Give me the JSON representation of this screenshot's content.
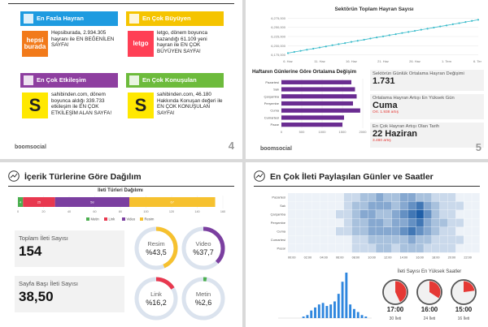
{
  "slide4": {
    "cards": [
      {
        "title": "En Fazla Hayran",
        "logo": "hepsi burada",
        "text": "Hepsiburada, 2.934.305 hayranı ile EN BEĞENİLEN SAYFA!",
        "color": "#1e9be0",
        "logo_color": "#f27a1a"
      },
      {
        "title": "En Çok Büyüyen",
        "logo": "letgo",
        "text": "letgo, dönem boyunca kazandığı 61.109 yeni hayran ile EN ÇOK BÜYÜYEN SAYFA!",
        "color": "#f5c400",
        "logo_color": "#ff3f55"
      },
      {
        "title": "En Çok Etkileşim",
        "logo": "S",
        "text": "sahibinden.com, dönem boyunca aldığı 339.733 etkileşim ile EN ÇOK ETKİLEŞİM ALAN SAYFA!",
        "color": "#8e3fa0",
        "logo_color": "#ffe800"
      },
      {
        "title": "En Çok Konuşulan",
        "logo": "S",
        "text": "sahibinden.com, 46.180 Hakkında Konuşan değeri ile EN ÇOK KONUŞULAN SAYFA!",
        "color": "#6dbb3c",
        "logo_color": "#ffe800"
      }
    ],
    "footer": "boomsocial",
    "page": "4"
  },
  "slide5": {
    "line_chart": {
      "type": "line",
      "title": "Sektörün Toplam Hayran Sayısı",
      "categories": [
        "6. Haz",
        null,
        null,
        null,
        null,
        "11. Haz",
        null,
        null,
        null,
        null,
        "16. Haz",
        null,
        null,
        null,
        null,
        "21. Haz",
        null,
        null,
        null,
        null,
        "26. Haz",
        null,
        null,
        null,
        null,
        "1. Tem",
        null,
        null,
        null,
        null,
        "6. Tem"
      ],
      "values": [
        6180000,
        6183200,
        6186100,
        6189300,
        6192000,
        6195200,
        6198100,
        6201300,
        6204400,
        6207200,
        6210500,
        6213400,
        6216300,
        6219600,
        6222500,
        6225400,
        6228600,
        6231300,
        6234500,
        6237400,
        6240300,
        6243500,
        6246200,
        6249300,
        6252400,
        6255100,
        6258300,
        6261200,
        6264400,
        6267300,
        6270500
      ],
      "color": "#3bbccb",
      "ylim": [
        6170000,
        6280000
      ],
      "yticks": [
        {
          "value": 6175000,
          "label": "6,175,000"
        },
        {
          "value": 6200000,
          "label": "6,200,000"
        },
        {
          "value": 6225000,
          "label": "6,225,000"
        },
        {
          "value": 6250000,
          "label": "6,250,000"
        },
        {
          "value": 6275000,
          "label": "6,275,000"
        }
      ]
    },
    "bar_chart": {
      "type": "bar",
      "title": "Haftanın Günlerine Göre Ortalama Değişim",
      "categories": [
        "Pazartesi",
        "Salı",
        "Çarşamba",
        "Perşembe",
        "Cuma",
        "Cumartesi",
        "Pazar"
      ],
      "values": [
        1720,
        1810,
        1850,
        1760,
        1938,
        1540,
        1500
      ],
      "color": "#6a2c91",
      "xlim": [
        0,
        2000
      ],
      "xticks": [
        0,
        500,
        1000,
        1500,
        2000
      ]
    },
    "stats": [
      {
        "label": "Sektörün Günlük Ortalama Hayran Değişimi",
        "value": "1.731"
      },
      {
        "label": "Ortalama Hayran Artışı En Yüksek Gün",
        "value": "Cuma",
        "note": "Ort. 1.938 artış"
      },
      {
        "label": "En Çok Hayran Artışı Olan Tarih",
        "value": "22 Haziran",
        "note": "3.480 artış"
      }
    ],
    "footer": "boomsocial",
    "page": "5"
  },
  "slide6": {
    "title": "İçerik Türlerine Göre Dağılım",
    "stacked": {
      "type": "stacked_bar",
      "title": "İleti Türleri Dağılımı",
      "series": [
        {
          "name": "Metin",
          "color": "#4caf50",
          "values": [
            4
          ]
        },
        {
          "name": "Link",
          "color": "#e8384f",
          "values": [
            25
          ]
        },
        {
          "name": "Video",
          "color": "#7b3fa0",
          "values": [
            58
          ]
        },
        {
          "name": "Resim",
          "color": "#f6c12f",
          "values": [
            67
          ]
        }
      ],
      "xlim": [
        0,
        160
      ],
      "xticks": [
        0,
        20,
        40,
        60,
        80,
        100,
        120,
        140,
        160
      ]
    },
    "cards": [
      {
        "label": "Toplam İleti Sayısı",
        "value": "154"
      },
      {
        "label": "Sayfa Başı İleti Sayısı",
        "value": "38,50"
      }
    ],
    "donuts": {
      "type": "donut",
      "categories": [
        "Resim",
        "Video",
        "Link",
        "Metin"
      ],
      "values": [
        43.5,
        37.7,
        16.2,
        2.6
      ],
      "value_labels": [
        "%43,5",
        "%37,7",
        "%16,2",
        "%2,6"
      ],
      "colors": [
        "#f6c12f",
        "#7b3fa0",
        "#e8384f",
        "#4caf50"
      ]
    }
  },
  "slide7": {
    "title": "En Çok İleti Paylaşılan Günler ve Saatler",
    "heatmap": {
      "type": "heatmap",
      "rows": [
        "Pazartesi",
        "Salı",
        "Çarşamba",
        "Perşembe",
        "Cuma",
        "Cumartesi",
        "Pazar"
      ],
      "columns": [
        "00:00",
        null,
        "02:00",
        null,
        "04:00",
        null,
        "06:00",
        null,
        "08:00",
        null,
        "10:00",
        null,
        "12:00",
        null,
        "14:00",
        null,
        "16:00",
        null,
        "18:00",
        null,
        "20:00",
        null,
        "22:00",
        null
      ],
      "values": [
        [
          0,
          0,
          0,
          0,
          0,
          0,
          0,
          1,
          1,
          2,
          2,
          3,
          2,
          2,
          3,
          3,
          2,
          2,
          1,
          1,
          1,
          0,
          0,
          0
        ],
        [
          0,
          0,
          0,
          0,
          0,
          0,
          0,
          1,
          2,
          2,
          3,
          3,
          3,
          2,
          3,
          4,
          5,
          3,
          2,
          1,
          1,
          1,
          0,
          0
        ],
        [
          0,
          0,
          0,
          0,
          0,
          0,
          1,
          1,
          2,
          3,
          3,
          2,
          2,
          3,
          4,
          5,
          6,
          4,
          2,
          1,
          1,
          0,
          0,
          0
        ],
        [
          0,
          0,
          0,
          0,
          0,
          0,
          0,
          1,
          2,
          2,
          3,
          3,
          2,
          3,
          3,
          4,
          5,
          3,
          2,
          2,
          1,
          1,
          0,
          0
        ],
        [
          0,
          0,
          0,
          0,
          0,
          0,
          1,
          1,
          2,
          2,
          3,
          3,
          3,
          3,
          4,
          5,
          4,
          3,
          2,
          1,
          1,
          0,
          0,
          0
        ],
        [
          0,
          0,
          0,
          0,
          0,
          0,
          0,
          0,
          1,
          1,
          2,
          2,
          2,
          2,
          2,
          3,
          2,
          2,
          1,
          1,
          1,
          1,
          0,
          0
        ],
        [
          0,
          0,
          0,
          0,
          0,
          0,
          0,
          0,
          1,
          1,
          1,
          2,
          2,
          1,
          2,
          2,
          2,
          1,
          1,
          1,
          1,
          0,
          0,
          0
        ]
      ],
      "color": "#1f5fa8"
    },
    "hourly": {
      "type": "bar",
      "values": [
        0,
        0,
        0,
        0,
        0,
        0,
        1,
        2,
        5,
        7,
        9,
        10,
        8,
        9,
        11,
        16,
        24,
        30,
        9,
        6,
        4,
        2,
        1,
        0
      ],
      "color": "#2e86de"
    },
    "top_hours": {
      "type": "gauge",
      "title": "İleti Sayısı En Yüksek Saatler",
      "categories": [
        "17:00",
        "16:00",
        "15:00"
      ],
      "values": [
        30,
        24,
        16
      ],
      "value_labels": [
        "30 İleti",
        "24 İleti",
        "16 İleti"
      ],
      "color": "#e53935"
    }
  }
}
